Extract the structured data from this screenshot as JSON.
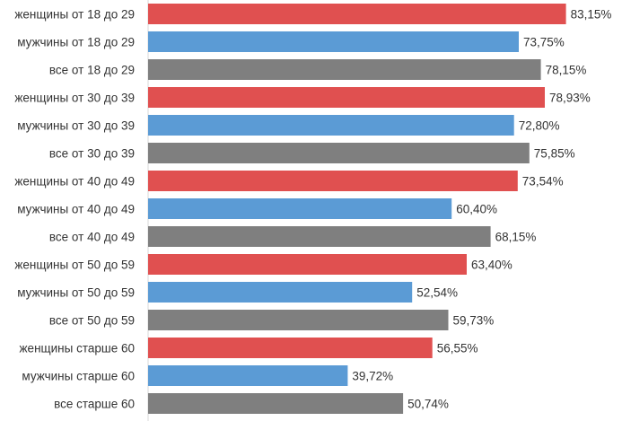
{
  "chart_data": {
    "type": "bar",
    "orientation": "horizontal",
    "categories": [
      "женщины от 18 до 29",
      "мужчины от 18 до 29",
      "все от 18 до 29",
      "женщины от 30 до 39",
      "мужчины от 30 до 39",
      "все от 30 до 39",
      "женщины от 40 до 49",
      "мужчины от 40 до 49",
      "все от 40 до 49",
      "женщины от 50 до 59",
      "мужчины от 50 до 59",
      "все от 50 до 59",
      "женщины старше 60",
      "мужчины старше 60",
      "все старше 60"
    ],
    "values": [
      83.15,
      73.75,
      78.15,
      78.93,
      72.8,
      75.85,
      73.54,
      60.4,
      68.15,
      63.4,
      52.54,
      59.73,
      56.55,
      39.72,
      50.74
    ],
    "value_labels": [
      "83,15%",
      "73,75%",
      "78,15%",
      "78,93%",
      "72,80%",
      "75,85%",
      "73,54%",
      "60,40%",
      "68,15%",
      "63,40%",
      "52,54%",
      "59,73%",
      "56,55%",
      "39,72%",
      "50,74%"
    ],
    "bar_groups": [
      "women",
      "men",
      "all",
      "women",
      "men",
      "all",
      "women",
      "men",
      "all",
      "women",
      "men",
      "all",
      "women",
      "men",
      "all"
    ],
    "colors": {
      "women": "#e05050",
      "men": "#5b9bd5",
      "all": "#7f7f7f"
    },
    "title": "",
    "xlabel": "",
    "ylabel": "",
    "xlim": [
      0,
      100
    ],
    "grid": false,
    "legend": "none"
  }
}
